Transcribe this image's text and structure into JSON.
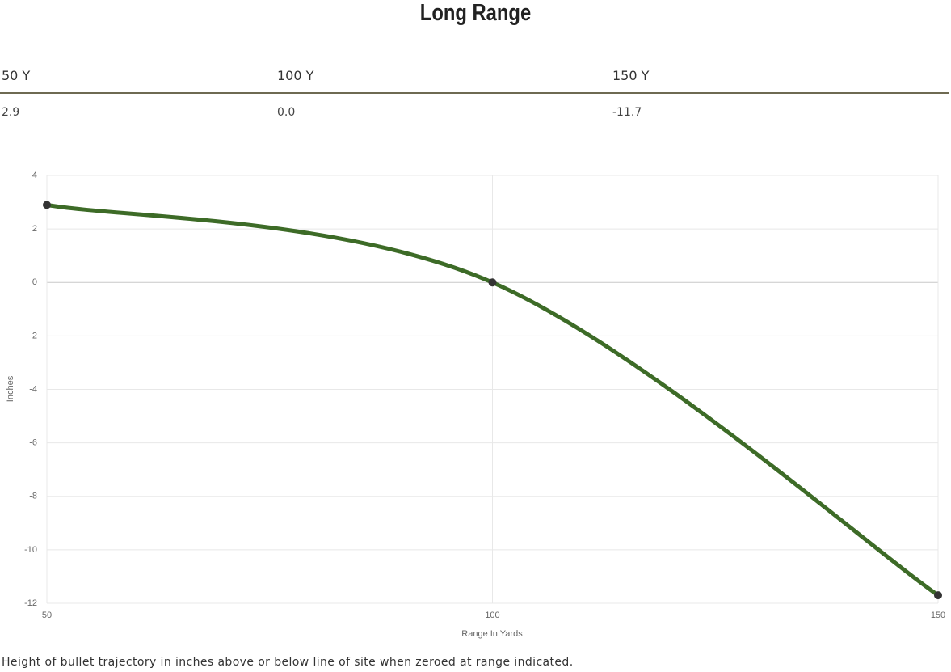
{
  "title": "Long Range",
  "table": {
    "headers": [
      "50 Y",
      "100 Y",
      "150 Y"
    ],
    "rows": [
      [
        "2.9",
        "0.0",
        "-11.7"
      ]
    ]
  },
  "chart_data": {
    "type": "line",
    "x": [
      50,
      100,
      150
    ],
    "values": [
      2.9,
      0,
      -11.7
    ],
    "color": "#3d6b27",
    "point_color": "#333333",
    "xlim": [
      50,
      150
    ],
    "xticks": [
      50,
      100,
      150
    ],
    "ylim": [
      -12,
      4
    ],
    "yticks": [
      -12,
      -10,
      -8,
      -6,
      -4,
      -2,
      0,
      2,
      4
    ],
    "x_label": "Range In Yards",
    "y_label": "Inches",
    "grid": true
  },
  "footnote": "Height of bullet trajectory in inches above or below line of site when zeroed at range indicated."
}
